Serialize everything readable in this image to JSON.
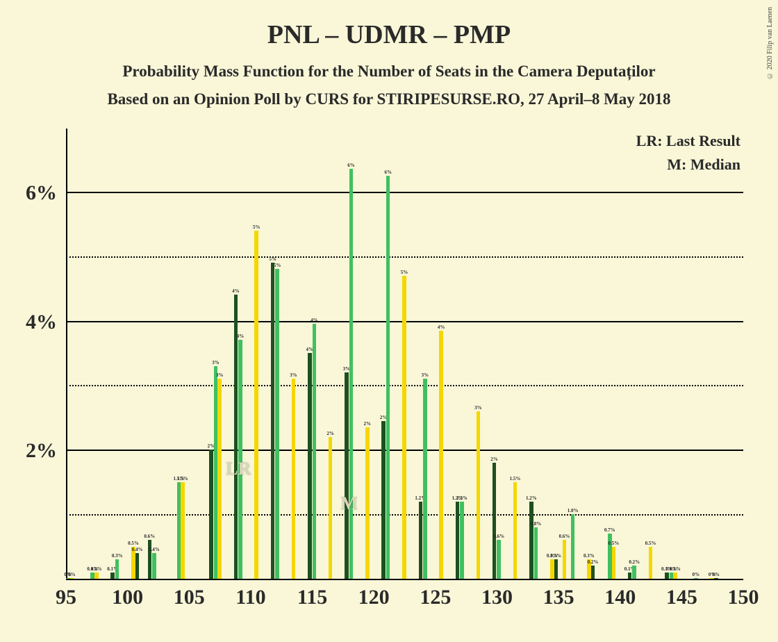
{
  "chart": {
    "type": "bar",
    "background_color": "#f9f7d8",
    "title": "PNL – UDMR – PMP",
    "title_fontsize": 38,
    "subtitle1": "Probability Mass Function for the Number of Seats in the Camera Deputaților",
    "subtitle2": "Based on an Opinion Poll by CURS for STIRIPESURSE.RO, 27 April–8 May 2018",
    "subtitle_fontsize": 23,
    "legend": {
      "lr": "LR: Last Result",
      "m": "M: Median",
      "fontsize": 22
    },
    "copyright": "© 2020 Filip van Laenen",
    "ylim": [
      0,
      7
    ],
    "ytick_major": [
      2,
      4,
      6
    ],
    "ytick_minor": [
      1,
      3,
      5
    ],
    "ylabels": [
      "2%",
      "4%",
      "6%"
    ],
    "xlim": [
      95,
      150
    ],
    "xtick": [
      95,
      100,
      105,
      110,
      115,
      120,
      125,
      130,
      135,
      140,
      145,
      150
    ],
    "series_colors": [
      "#40c060",
      "#f5d700",
      "#1e5020"
    ],
    "marker_color": "#d7d7b8",
    "bar_group_gap": 1,
    "lr_position": 108,
    "m_position": 117,
    "data": [
      {
        "x": 95,
        "v": [
          0,
          0,
          null
        ],
        "l": [
          "0%",
          "0%",
          null
        ]
      },
      {
        "x": 96,
        "v": [
          null,
          null,
          null
        ],
        "l": [
          null,
          null,
          null
        ]
      },
      {
        "x": 97,
        "v": [
          0.1,
          0.1,
          null
        ],
        "l": [
          "0.1%",
          "0.1%",
          null
        ]
      },
      {
        "x": 98,
        "v": [
          null,
          null,
          0.1
        ],
        "l": [
          null,
          null,
          "0.1%"
        ]
      },
      {
        "x": 99,
        "v": [
          0.3,
          null,
          null
        ],
        "l": [
          "0.3%",
          null,
          null
        ]
      },
      {
        "x": 100,
        "v": [
          null,
          0.5,
          0.4
        ],
        "l": [
          null,
          "0.5%",
          "0.4%"
        ]
      },
      {
        "x": 101,
        "v": [
          null,
          null,
          0.6
        ],
        "l": [
          null,
          null,
          "0.6%"
        ]
      },
      {
        "x": 102,
        "v": [
          0.4,
          null,
          null
        ],
        "l": [
          "0.4%",
          null,
          null
        ]
      },
      {
        "x": 103,
        "v": [
          null,
          null,
          null
        ],
        "l": [
          null,
          null,
          null
        ]
      },
      {
        "x": 104,
        "v": [
          1.5,
          1.5,
          null
        ],
        "l": [
          "1.5%",
          "1.5%",
          null
        ]
      },
      {
        "x": 105,
        "v": [
          null,
          null,
          null
        ],
        "l": [
          null,
          null,
          null
        ]
      },
      {
        "x": 106,
        "v": [
          null,
          null,
          2.0
        ],
        "l": [
          null,
          null,
          "2%"
        ]
      },
      {
        "x": 107,
        "v": [
          3.3,
          3.1,
          null
        ],
        "l": [
          "3%",
          "3%",
          null
        ]
      },
      {
        "x": 108,
        "v": [
          null,
          null,
          4.4
        ],
        "l": [
          null,
          null,
          "4%"
        ]
      },
      {
        "x": 109,
        "v": [
          3.7,
          null,
          null
        ],
        "l": [
          "4%",
          null,
          null
        ]
      },
      {
        "x": 110,
        "v": [
          null,
          5.4,
          null
        ],
        "l": [
          null,
          "5%",
          null
        ]
      },
      {
        "x": 111,
        "v": [
          null,
          null,
          4.9
        ],
        "l": [
          null,
          null,
          "5%"
        ]
      },
      {
        "x": 112,
        "v": [
          4.8,
          null,
          null
        ],
        "l": [
          "5%",
          null,
          null
        ]
      },
      {
        "x": 113,
        "v": [
          null,
          3.1,
          null
        ],
        "l": [
          null,
          "3%",
          null
        ]
      },
      {
        "x": 114,
        "v": [
          null,
          null,
          3.5
        ],
        "l": [
          null,
          null,
          "4%"
        ]
      },
      {
        "x": 115,
        "v": [
          3.95,
          null,
          null
        ],
        "l": [
          "4%",
          null,
          null
        ]
      },
      {
        "x": 116,
        "v": [
          null,
          2.2,
          null
        ],
        "l": [
          null,
          "2%",
          null
        ]
      },
      {
        "x": 117,
        "v": [
          null,
          null,
          3.2
        ],
        "l": [
          null,
          null,
          "3%"
        ]
      },
      {
        "x": 118,
        "v": [
          6.35,
          null,
          null
        ],
        "l": [
          "6%",
          null,
          null
        ]
      },
      {
        "x": 119,
        "v": [
          null,
          2.35,
          null
        ],
        "l": [
          null,
          "2%",
          null
        ]
      },
      {
        "x": 120,
        "v": [
          null,
          null,
          2.45
        ],
        "l": [
          null,
          null,
          "2%"
        ]
      },
      {
        "x": 121,
        "v": [
          6.25,
          null,
          null
        ],
        "l": [
          "6%",
          null,
          null
        ]
      },
      {
        "x": 122,
        "v": [
          null,
          4.7,
          null
        ],
        "l": [
          null,
          "5%",
          null
        ]
      },
      {
        "x": 123,
        "v": [
          null,
          null,
          1.2
        ],
        "l": [
          null,
          null,
          "1.2%"
        ]
      },
      {
        "x": 124,
        "v": [
          3.1,
          null,
          null
        ],
        "l": [
          "3%",
          null,
          null
        ]
      },
      {
        "x": 125,
        "v": [
          null,
          3.85,
          null
        ],
        "l": [
          null,
          "4%",
          null
        ]
      },
      {
        "x": 126,
        "v": [
          null,
          null,
          1.2
        ],
        "l": [
          null,
          null,
          "1.2%"
        ]
      },
      {
        "x": 127,
        "v": [
          1.2,
          null,
          null
        ],
        "l": [
          "1.2%",
          null,
          null
        ]
      },
      {
        "x": 128,
        "v": [
          null,
          2.6,
          null
        ],
        "l": [
          null,
          "3%",
          null
        ]
      },
      {
        "x": 129,
        "v": [
          null,
          null,
          1.8
        ],
        "l": [
          null,
          null,
          "2%"
        ]
      },
      {
        "x": 130,
        "v": [
          0.6,
          null,
          null
        ],
        "l": [
          "0.6%",
          null,
          null
        ]
      },
      {
        "x": 131,
        "v": [
          null,
          1.5,
          null
        ],
        "l": [
          null,
          "1.5%",
          null
        ]
      },
      {
        "x": 132,
        "v": [
          null,
          null,
          1.2
        ],
        "l": [
          null,
          null,
          "1.2%"
        ]
      },
      {
        "x": 133,
        "v": [
          0.8,
          null,
          null
        ],
        "l": [
          "0.8%",
          null,
          null
        ]
      },
      {
        "x": 134,
        "v": [
          null,
          0.3,
          0.3
        ],
        "l": [
          null,
          "0.3%",
          "0.3%"
        ]
      },
      {
        "x": 135,
        "v": [
          null,
          0.6,
          null
        ],
        "l": [
          null,
          "0.6%",
          null
        ]
      },
      {
        "x": 136,
        "v": [
          1.0,
          null,
          null
        ],
        "l": [
          "1.0%",
          null,
          null
        ]
      },
      {
        "x": 137,
        "v": [
          null,
          0.3,
          0.2
        ],
        "l": [
          null,
          "0.3%",
          "0.2%"
        ]
      },
      {
        "x": 138,
        "v": [
          null,
          null,
          null
        ],
        "l": [
          null,
          null,
          null
        ]
      },
      {
        "x": 139,
        "v": [
          0.7,
          0.5,
          null
        ],
        "l": [
          "0.7%",
          "0.5%",
          null
        ]
      },
      {
        "x": 140,
        "v": [
          null,
          null,
          0.1
        ],
        "l": [
          null,
          null,
          "0.1%"
        ]
      },
      {
        "x": 141,
        "v": [
          0.2,
          null,
          null
        ],
        "l": [
          "0.2%",
          null,
          null
        ]
      },
      {
        "x": 142,
        "v": [
          null,
          0.5,
          null
        ],
        "l": [
          null,
          "0.5%",
          null
        ]
      },
      {
        "x": 143,
        "v": [
          null,
          null,
          0.1
        ],
        "l": [
          null,
          null,
          "0.1%"
        ]
      },
      {
        "x": 144,
        "v": [
          0.1,
          0.1,
          null
        ],
        "l": [
          "0.1%",
          "0.1%",
          null
        ]
      },
      {
        "x": 145,
        "v": [
          null,
          null,
          null
        ],
        "l": [
          null,
          null,
          null
        ]
      },
      {
        "x": 146,
        "v": [
          0,
          null,
          null
        ],
        "l": [
          "0%",
          null,
          null
        ]
      },
      {
        "x": 147,
        "v": [
          null,
          0,
          0
        ],
        "l": [
          null,
          "0%",
          "0%"
        ]
      },
      {
        "x": 148,
        "v": [
          null,
          null,
          null
        ],
        "l": [
          null,
          null,
          null
        ]
      },
      {
        "x": 149,
        "v": [
          null,
          null,
          null
        ],
        "l": [
          null,
          null,
          null
        ]
      }
    ]
  }
}
